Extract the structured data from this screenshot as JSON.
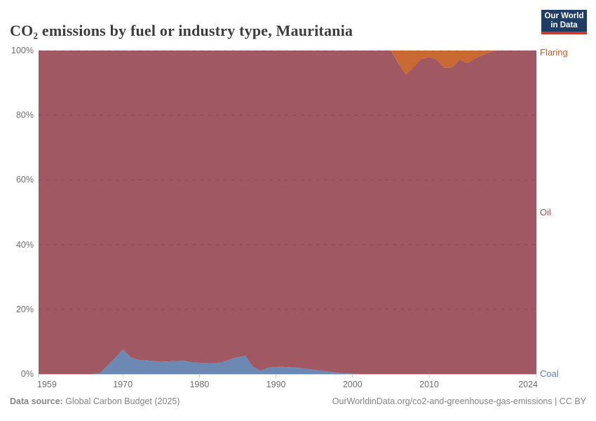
{
  "header": {
    "title": "CO₂ emissions by fuel or industry type, Mauritania",
    "logo": {
      "line1": "Our World",
      "line2": "in Data"
    }
  },
  "footer": {
    "source_label": "Data source:",
    "source_text": " Global Carbon Budget (2025)",
    "link_text": "OurWorldinData.org/co2-and-greenhouse-gas-emissions | CC BY"
  },
  "colors": {
    "logo_navy": "#1d3d63",
    "logo_red": "#c53d32",
    "axis_line": "#c9c9c9",
    "tick_text": "#6e6e6e",
    "gridline": "rgba(0,0,0,0.12)"
  },
  "chart_data": {
    "type": "area",
    "stacking": "percent",
    "title": "CO₂ emissions by fuel or industry type, Mauritania",
    "xlabel": "",
    "ylabel": "",
    "ylim": [
      0,
      100
    ],
    "grid": "dashed horizontal",
    "legend_position": "right-edge-labels",
    "xticks": [
      1959,
      1970,
      1980,
      1990,
      2000,
      2010,
      2024
    ],
    "yticks": [
      0,
      20,
      40,
      60,
      80,
      100
    ],
    "ytick_suffix": "%",
    "x": [
      1959,
      1960,
      1961,
      1962,
      1963,
      1964,
      1965,
      1966,
      1967,
      1968,
      1969,
      1970,
      1971,
      1972,
      1973,
      1974,
      1975,
      1976,
      1977,
      1978,
      1979,
      1980,
      1981,
      1982,
      1983,
      1984,
      1985,
      1986,
      1987,
      1988,
      1989,
      1990,
      1991,
      1992,
      1993,
      1994,
      1995,
      1996,
      1997,
      1998,
      1999,
      2000,
      2001,
      2002,
      2003,
      2004,
      2005,
      2006,
      2007,
      2008,
      2009,
      2010,
      2011,
      2012,
      2013,
      2014,
      2015,
      2016,
      2017,
      2018,
      2019,
      2020,
      2021,
      2022,
      2023,
      2024
    ],
    "series": [
      {
        "name": "Coal",
        "color": "#6c89b4",
        "label_color": "#5d80b4",
        "label_y_pct": 0,
        "values": [
          0,
          0,
          0,
          0,
          0,
          0,
          0,
          0,
          0.2,
          2.6,
          5,
          7.6,
          5.2,
          4.4,
          4.2,
          4,
          3.8,
          3.9,
          4,
          4.1,
          3.6,
          3.5,
          3.4,
          3.3,
          3.7,
          4.5,
          5.2,
          5.6,
          2.2,
          1,
          2,
          2.2,
          2.2,
          2.1,
          1.9,
          1.6,
          1.3,
          1,
          0.7,
          0.4,
          0.2,
          0.1,
          0,
          0,
          0,
          0,
          0,
          0,
          0,
          0,
          0,
          0,
          0,
          0,
          0,
          0,
          0,
          0,
          0,
          0,
          0,
          0,
          0,
          0,
          0,
          0
        ]
      },
      {
        "name": "Oil",
        "color": "#a05862",
        "label_color": "#9c5560",
        "label_y_pct": 50,
        "values": [
          100,
          100,
          100,
          100,
          100,
          100,
          100,
          100,
          99.8,
          97.4,
          95,
          92.4,
          94.8,
          95.6,
          95.8,
          96,
          96.2,
          96.1,
          96,
          95.9,
          96.4,
          96.5,
          96.6,
          96.7,
          96.3,
          95.5,
          94.8,
          94.4,
          97.8,
          99,
          98,
          97.8,
          97.8,
          97.9,
          98.1,
          98.4,
          98.7,
          99,
          99.3,
          99.6,
          99.8,
          99.9,
          100,
          100,
          100,
          100,
          100,
          96,
          92.5,
          95,
          97.4,
          98,
          97.2,
          94.6,
          94.8,
          97.2,
          96.1,
          97.6,
          98.6,
          99.6,
          100,
          100,
          100,
          100,
          100,
          100
        ]
      },
      {
        "name": "Flaring",
        "color": "#c96a33",
        "label_color": "#bf5b2c",
        "label_y_pct": 99.3,
        "values": [
          0,
          0,
          0,
          0,
          0,
          0,
          0,
          0,
          0,
          0,
          0,
          0,
          0,
          0,
          0,
          0,
          0,
          0,
          0,
          0,
          0,
          0,
          0,
          0,
          0,
          0,
          0,
          0,
          0,
          0,
          0,
          0,
          0,
          0,
          0,
          0,
          0,
          0,
          0,
          0,
          0,
          0,
          0,
          0,
          0,
          0,
          0,
          4,
          7.5,
          5,
          2.6,
          2,
          2.8,
          5.4,
          5.2,
          2.8,
          3.9,
          2.4,
          1.4,
          0.4,
          0,
          0,
          0,
          0,
          0,
          0
        ]
      }
    ]
  }
}
